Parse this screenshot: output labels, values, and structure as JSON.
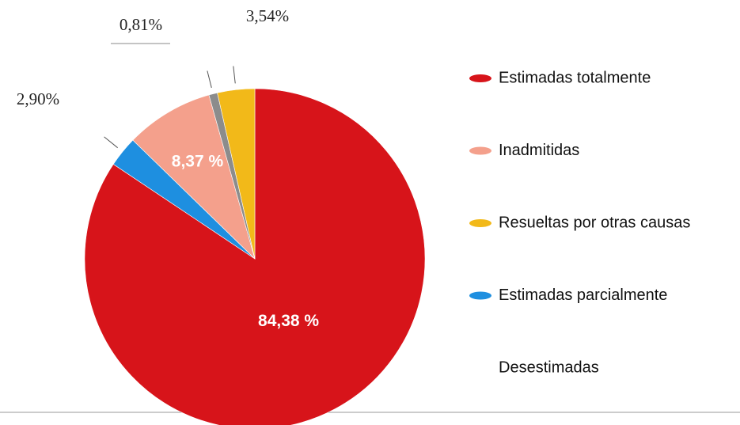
{
  "chart_data": {
    "type": "pie",
    "categories": [
      "Estimadas totalmente",
      "Estimadas parcialmente",
      "Inadmitidas",
      "Desestimadas",
      "Resueltas por otras causas"
    ],
    "values": [
      84.38,
      2.9,
      8.37,
      0.81,
      3.54
    ],
    "value_labels": [
      "84,38 %",
      "2,90%",
      "8,37 %",
      "0,81%",
      "3,54%"
    ],
    "colors": [
      "#d7141a",
      "#1e8fe0",
      "#f4a08c",
      "#8c8c8c",
      "#f2b919"
    ]
  }
}
